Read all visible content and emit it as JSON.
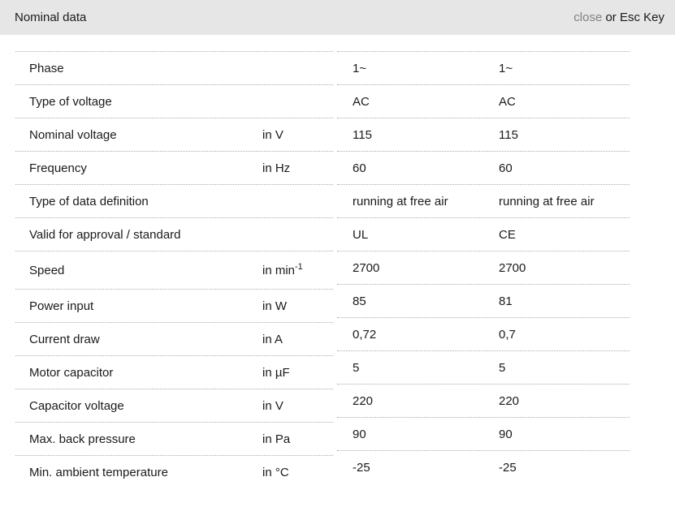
{
  "header": {
    "title": "Nominal data",
    "close_label": "close",
    "esc_hint": " or Esc Key"
  },
  "colors": {
    "header_bg": "#e6e6e6",
    "text": "#1a1a1a",
    "close_link": "#808080",
    "row_separator": "#aaaaaa"
  },
  "table": {
    "rows": [
      {
        "label": "Phase",
        "unit": "",
        "values": [
          "1~",
          "1~"
        ]
      },
      {
        "label": "Type of voltage",
        "unit": "",
        "values": [
          "AC",
          "AC"
        ]
      },
      {
        "label": "Nominal voltage",
        "unit": "in V",
        "values": [
          "115",
          "115"
        ]
      },
      {
        "label": "Frequency",
        "unit": "in Hz",
        "values": [
          "60",
          "60"
        ]
      },
      {
        "label": "Type of data definition",
        "unit": "",
        "values": [
          "running at free air",
          "running at free air"
        ]
      },
      {
        "label": "Valid for approval / standard",
        "unit": "",
        "values": [
          "UL",
          "CE"
        ]
      },
      {
        "label": "Speed",
        "unit": "in min",
        "unit_sup": "-1",
        "values": [
          "2700",
          "2700"
        ]
      },
      {
        "label": "Power input",
        "unit": "in W",
        "values": [
          "85",
          "81"
        ]
      },
      {
        "label": "Current draw",
        "unit": "in A",
        "values": [
          "0,72",
          "0,7"
        ]
      },
      {
        "label": "Motor capacitor",
        "unit": "in µF",
        "values": [
          "5",
          "5"
        ]
      },
      {
        "label": "Capacitor voltage",
        "unit": "in V",
        "values": [
          "220",
          "220"
        ]
      },
      {
        "label": "Max. back pressure",
        "unit": "in Pa",
        "values": [
          "90",
          "90"
        ]
      },
      {
        "label": "Min. ambient temperature",
        "unit": "in °C",
        "values": [
          "-25",
          "-25"
        ]
      }
    ]
  }
}
